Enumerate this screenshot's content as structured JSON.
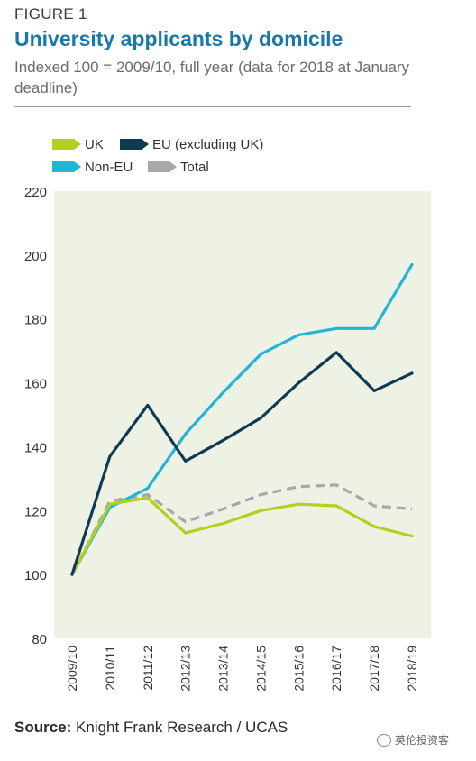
{
  "figure_label": "FIGURE 1",
  "source_label": "Source:",
  "source_text": " Knight Frank Research / UCAS",
  "watermark": "英伦投资客",
  "chart_data": {
    "type": "line",
    "title": "University applicants by domicile",
    "subtitle": "Indexed 100 = 2009/10, full year (data for 2018 at January deadline)",
    "categories": [
      "2009/10",
      "2010/11",
      "2011/12",
      "2012/13",
      "2013/14",
      "2014/15",
      "2015/16",
      "2016/17",
      "2017/18",
      "2018/19"
    ],
    "ylim": [
      80,
      220
    ],
    "yticks": [
      80,
      100,
      120,
      140,
      160,
      180,
      200,
      220
    ],
    "grid": false,
    "legend_position": "top-left",
    "series": [
      {
        "name": "UK",
        "color": "#b5cf1e",
        "dashed": false,
        "values": [
          100,
          122,
          124,
          113,
          116,
          120,
          122,
          121.5,
          115,
          112
        ]
      },
      {
        "name": "EU (excluding UK)",
        "color": "#0f3b52",
        "dashed": false,
        "values": [
          100,
          137,
          153,
          135.5,
          142,
          149,
          160,
          169.5,
          157.5,
          163
        ]
      },
      {
        "name": "Non-EU",
        "color": "#22b5d6",
        "dashed": false,
        "values": [
          100,
          121,
          127,
          144,
          157,
          169,
          175,
          177,
          177,
          197
        ]
      },
      {
        "name": "Total",
        "color": "#a8a8a8",
        "dashed": true,
        "values": [
          100,
          123,
          125,
          116.5,
          120.5,
          125,
          127.5,
          128,
          121.5,
          120.5
        ]
      }
    ]
  }
}
